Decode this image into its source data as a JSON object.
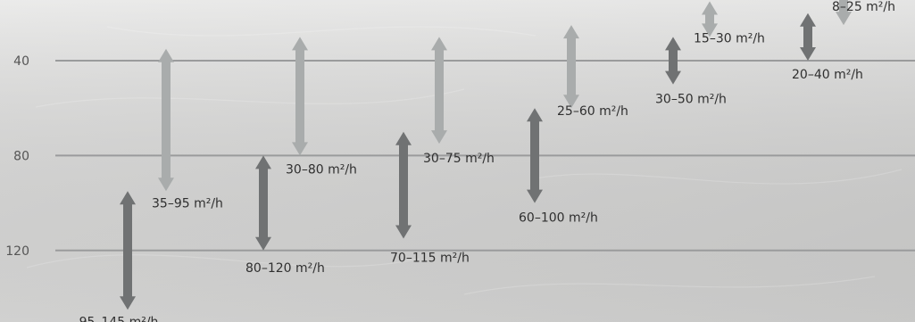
{
  "chart_data": {
    "type": "range-bar",
    "title": "",
    "xlabel": "",
    "ylabel": "",
    "ylim": [
      6,
      145
    ],
    "y_axis_inverted": true,
    "grid": true,
    "y_ticks": [
      40,
      80,
      120
    ],
    "colors": {
      "light_arrow": "#a9acac",
      "dark_arrow": "#707273",
      "gridline": "#9a9b9c",
      "label": "#2f2f2f",
      "tick": "#555555"
    },
    "ranges": [
      {
        "low": 95,
        "high": 145,
        "label": "95–145 m²/h",
        "shade": "dark"
      },
      {
        "low": 35,
        "high": 95,
        "label": "35–95 m²/h",
        "shade": "light"
      },
      {
        "low": 80,
        "high": 120,
        "label": "80–120 m²/h",
        "shade": "dark"
      },
      {
        "low": 30,
        "high": 80,
        "label": "30–80 m²/h",
        "shade": "light"
      },
      {
        "low": 70,
        "high": 115,
        "label": "70–115 m²/h",
        "shade": "dark"
      },
      {
        "low": 30,
        "high": 75,
        "label": "30–75 m²/h",
        "shade": "light"
      },
      {
        "low": 60,
        "high": 100,
        "label": "60–100 m²/h",
        "shade": "dark"
      },
      {
        "low": 25,
        "high": 60,
        "label": "25–60 m²/h",
        "shade": "light"
      },
      {
        "low": 30,
        "high": 50,
        "label": "30–50 m²/h",
        "shade": "dark"
      },
      {
        "low": 15,
        "high": 30,
        "label": "15–30 m²/h",
        "shade": "light"
      },
      {
        "low": 20,
        "high": 40,
        "label": "20–40 m²/h",
        "shade": "dark"
      },
      {
        "low": 8,
        "high": 25,
        "label": "8–25 m²/h",
        "shade": "light"
      }
    ]
  }
}
